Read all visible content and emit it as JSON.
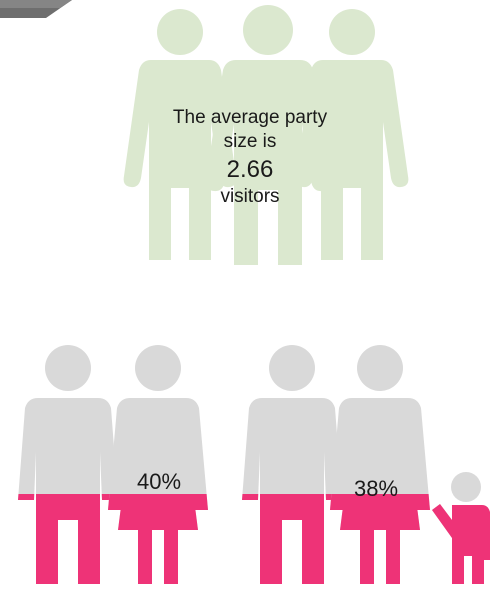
{
  "average_party": {
    "line1": "The average party",
    "line2": "size is",
    "value": "2.66",
    "unit": "visitors"
  },
  "groups": [
    {
      "name": "couple",
      "percent_label": "40%",
      "percent": 40
    },
    {
      "name": "couple-with-child",
      "percent_label": "38%",
      "percent": 38
    }
  ],
  "colors": {
    "green_figure": "#dbe8cf",
    "grey_figure": "#d9d9d9",
    "pink_fill": "#ee3377",
    "corner_tab": "#6e6e6e"
  },
  "icons": [
    "male-figure-icon",
    "female-figure-icon",
    "child-figure-icon",
    "group-of-three-icon"
  ]
}
